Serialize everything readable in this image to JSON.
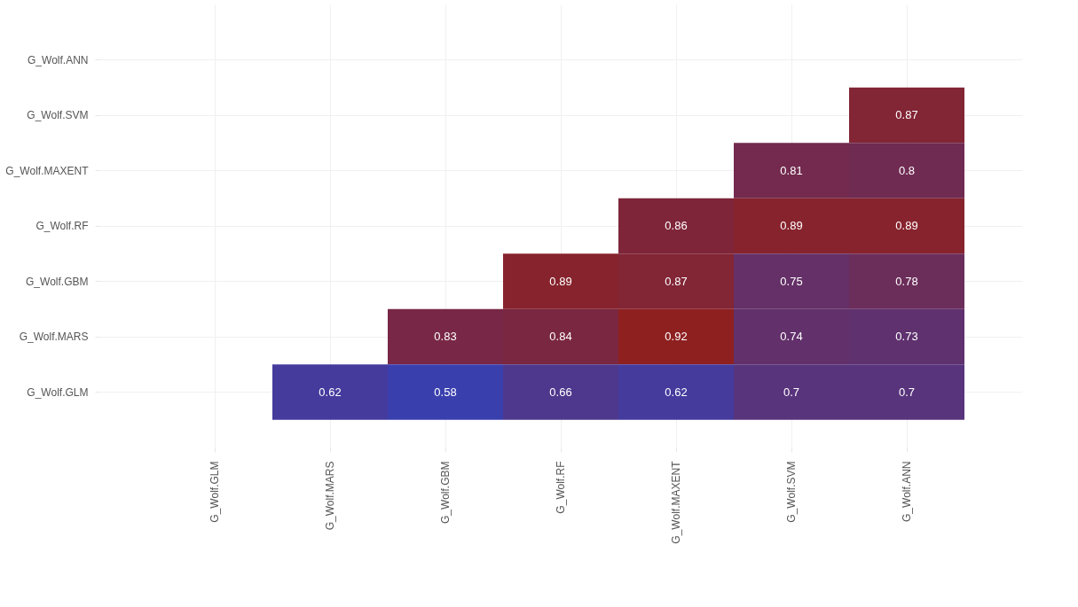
{
  "chart_data": {
    "type": "heatmap",
    "categories": [
      "G_Wolf.GLM",
      "G_Wolf.MARS",
      "G_Wolf.GBM",
      "G_Wolf.RF",
      "G_Wolf.MAXENT",
      "G_Wolf.SVM",
      "G_Wolf.ANN"
    ],
    "y_categories": [
      "G_Wolf.ANN",
      "G_Wolf.SVM",
      "G_Wolf.MAXENT",
      "G_Wolf.RF",
      "G_Wolf.GBM",
      "G_Wolf.MARS",
      "G_Wolf.GLM"
    ],
    "cells": [
      [
        null,
        null,
        null,
        null,
        null,
        null,
        null
      ],
      [
        null,
        null,
        null,
        null,
        null,
        null,
        0.87
      ],
      [
        null,
        null,
        null,
        null,
        null,
        0.81,
        0.8
      ],
      [
        null,
        null,
        null,
        null,
        0.86,
        0.89,
        0.89
      ],
      [
        null,
        null,
        null,
        0.89,
        0.87,
        0.75,
        0.78
      ],
      [
        null,
        null,
        0.83,
        0.84,
        0.92,
        0.74,
        0.73
      ],
      [
        null,
        0.62,
        0.58,
        0.66,
        0.62,
        0.7,
        0.7
      ]
    ],
    "colors": [
      "#3a3fae",
      "#8e2020"
    ],
    "data_labels": true,
    "grid": true
  }
}
